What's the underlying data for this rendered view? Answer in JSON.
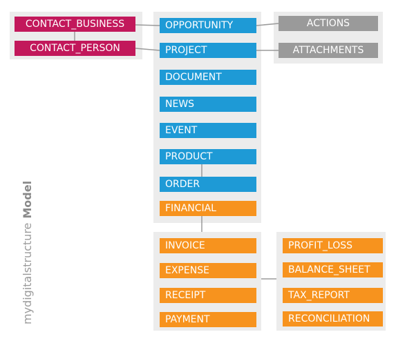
{
  "diagram": {
    "side_label": {
      "prefix": "mydigitalstructure",
      "emphasis": "Model"
    },
    "colors": {
      "contact": "#c2185b",
      "core": "#1e9ad6",
      "financial": "#f7931e",
      "auxiliary": "#9a9a9a",
      "panel": "#ececec",
      "connector": "#9a9a9a"
    },
    "contacts": {
      "business": "CONTACT_BUSINESS",
      "person": "CONTACT_PERSON"
    },
    "core": {
      "opportunity": "OPPORTUNITY",
      "project": "PROJECT",
      "document": "DOCUMENT",
      "news": "NEWS",
      "event": "EVENT",
      "product": "PRODUCT",
      "order": "ORDER",
      "financial": "FINANCIAL"
    },
    "auxiliary": {
      "actions": "ACTIONS",
      "attachments": "ATTACHMENTS"
    },
    "transactions": {
      "invoice": "INVOICE",
      "expense": "EXPENSE",
      "receipt": "RECEIPT",
      "payment": "PAYMENT"
    },
    "reports": {
      "profit_loss": "PROFIT_LOSS",
      "balance_sheet": "BALANCE_SHEET",
      "tax_report": "TAX_REPORT",
      "reconciliation": "RECONCILIATION"
    }
  }
}
